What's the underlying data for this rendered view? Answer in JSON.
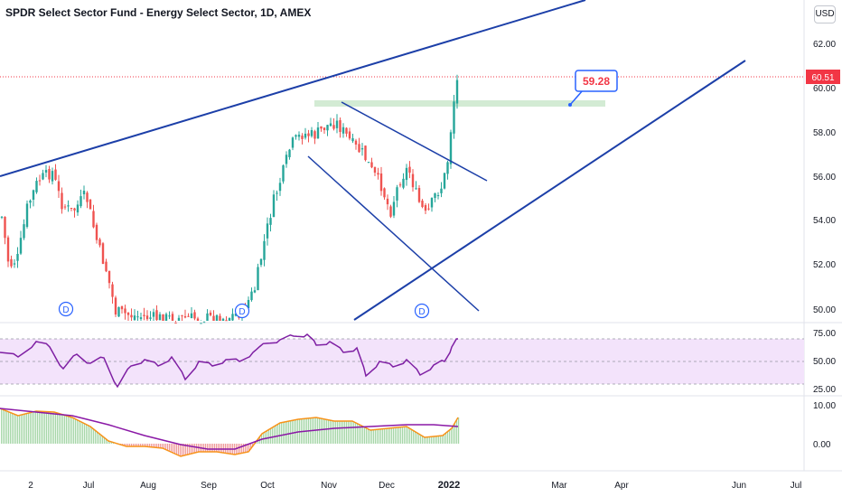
{
  "header": {
    "title": "SPDR Select Sector Fund - Energy Select Sector, 1D, AMEX",
    "currency": "USD"
  },
  "price_panel": {
    "y_ticks": [
      "62.00",
      "60.00",
      "58.00",
      "56.00",
      "54.00",
      "52.00",
      "50.00"
    ],
    "last_price": "60.51",
    "last_price_color": "#f23645",
    "callout_value": "59.28",
    "dividend_marker": "D"
  },
  "rsi_panel": {
    "y_ticks": [
      "75.00",
      "50.00",
      "25.00"
    ],
    "line_color": "#7e1fa3",
    "band_color": "#f3e3fb"
  },
  "oscillator_panel": {
    "y_ticks": [
      "10.00",
      "0.00"
    ],
    "fast_color": "#f7931a",
    "slow_color": "#8a18a6"
  },
  "x_axis": {
    "labels": [
      "2",
      "Jul",
      "Aug",
      "Sep",
      "Oct",
      "Nov",
      "Dec",
      "2022",
      "Mar",
      "Apr",
      "Jun",
      "Jul"
    ]
  },
  "colors": {
    "up": "#26a69a",
    "down": "#ef5350",
    "trendline": "#1c3fa8"
  }
}
